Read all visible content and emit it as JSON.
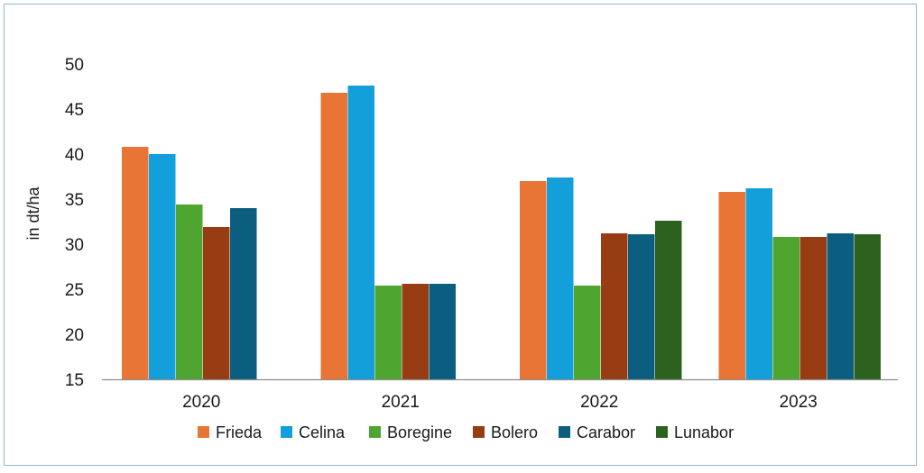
{
  "chart_data": {
    "type": "bar",
    "title": "",
    "xlabel": "",
    "ylabel": "in dt/ha",
    "ylim": [
      15,
      50
    ],
    "yticks": [
      15,
      20,
      25,
      30,
      35,
      40,
      45,
      50
    ],
    "grid": false,
    "legend_position": "bottom",
    "categories": [
      "2020",
      "2021",
      "2022",
      "2023"
    ],
    "series": [
      {
        "name": "Frieda",
        "color": "#e87435",
        "values": [
          40.8,
          46.8,
          37.0,
          35.8
        ]
      },
      {
        "name": "Celina",
        "color": "#139fd9",
        "values": [
          40.0,
          47.6,
          37.4,
          36.2
        ]
      },
      {
        "name": "Boregine",
        "color": "#4ea630",
        "values": [
          34.4,
          25.4,
          25.4,
          30.8
        ]
      },
      {
        "name": "Bolero",
        "color": "#983c14",
        "values": [
          31.9,
          25.6,
          31.2,
          30.8
        ]
      },
      {
        "name": "Carabor",
        "color": "#0b5e80",
        "values": [
          34.0,
          25.6,
          31.1,
          31.2
        ]
      },
      {
        "name": "Lunabor",
        "color": "#2d6120",
        "values": [
          null,
          null,
          32.6,
          31.1
        ]
      }
    ]
  }
}
